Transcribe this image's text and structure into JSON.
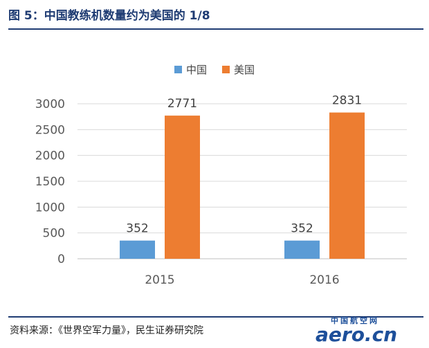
{
  "figure": {
    "title": "图 5：中国教练机数量约为美国的 1/8",
    "source": "资料来源：《世界空军力量》，民生证券研究院"
  },
  "watermark": {
    "small_text": "中国航空网",
    "big_text": "aero.cn"
  },
  "colors": {
    "title": "#1f3c73",
    "china": "#5b9bd5",
    "usa": "#ed7d31",
    "axis_text": "#595959",
    "grid": "#d9d9d9"
  },
  "chart_data": {
    "type": "bar",
    "categories": [
      "2015",
      "2016"
    ],
    "series": [
      {
        "name": "中国",
        "values": [
          352,
          352
        ]
      },
      {
        "name": "美国",
        "values": [
          2771,
          2831
        ]
      }
    ],
    "ylim": [
      0,
      3000
    ],
    "yticks": [
      0,
      500,
      1000,
      1500,
      2000,
      2500,
      3000
    ],
    "data_labels": true,
    "grid": true,
    "legend_position": "top-center",
    "xlabel": "",
    "ylabel": ""
  }
}
